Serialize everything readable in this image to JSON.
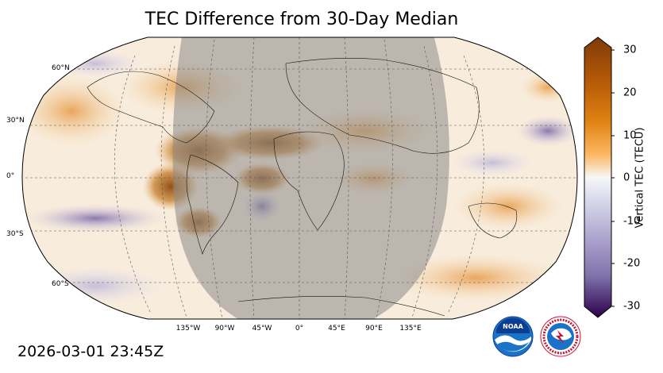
{
  "title": "TEC Difference from 30-Day Median",
  "timestamp": "2026-03-01 23:45Z",
  "colorbar": {
    "label": "Vertical TEC (TECU)",
    "ticks": [
      "30",
      "20",
      "10",
      "0",
      "-10",
      "-20",
      "-30"
    ],
    "range": [
      -30,
      30
    ],
    "colors": {
      "positive": "#7f3b08",
      "neutral": "#f7f7f7",
      "negative": "#2d004b"
    }
  },
  "map": {
    "projection": "Robinson",
    "longitude_labels": [
      "135°W",
      "90°W",
      "45°W",
      "0°",
      "45°E",
      "90°E",
      "135°E"
    ],
    "latitude_labels": [
      "60°N",
      "30°N",
      "0°",
      "30°S",
      "60°S"
    ],
    "night_shading": true,
    "gridlines": "dashed"
  },
  "logos": [
    {
      "name": "noaa",
      "text": "NOAA"
    },
    {
      "name": "nws",
      "text": "NATIONAL WEATHER SERVICE"
    }
  ]
}
